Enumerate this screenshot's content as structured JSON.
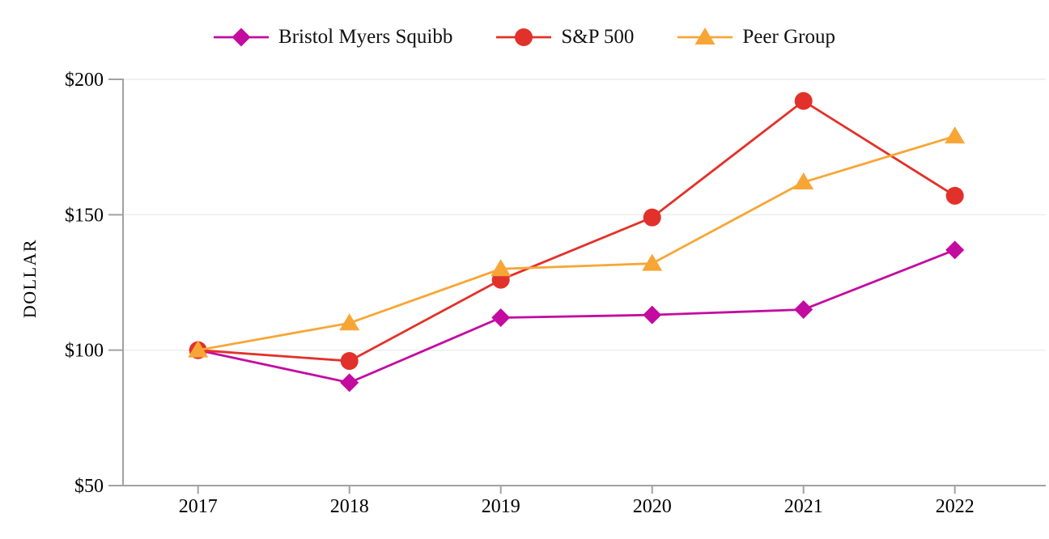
{
  "chart_data": {
    "type": "line",
    "title": "",
    "xlabel": "",
    "ylabel": "DOLLAR",
    "categories": [
      "2017",
      "2018",
      "2019",
      "2020",
      "2021",
      "2022"
    ],
    "series": [
      {
        "name": "Bristol Myers Squibb",
        "marker": "diamond",
        "color": "#C30BA0",
        "values": [
          100,
          88,
          112,
          113,
          115,
          137
        ]
      },
      {
        "name": "S&P 500",
        "marker": "circle",
        "color": "#E2312A",
        "values": [
          100,
          96,
          126,
          149,
          192,
          157
        ]
      },
      {
        "name": "Peer Group",
        "marker": "triangle",
        "color": "#F7A636",
        "values": [
          100,
          110,
          130,
          132,
          162,
          179
        ]
      }
    ],
    "ylim": [
      50,
      200
    ],
    "yticks": [
      50,
      100,
      150,
      200
    ],
    "ytick_labels": [
      "$50",
      "$100",
      "$150",
      "$200"
    ],
    "grid": "horizontal",
    "legend_position": "top",
    "axis_color": "#A1A1A1",
    "grid_color": "#ECECEC",
    "text_color": "#000000"
  }
}
